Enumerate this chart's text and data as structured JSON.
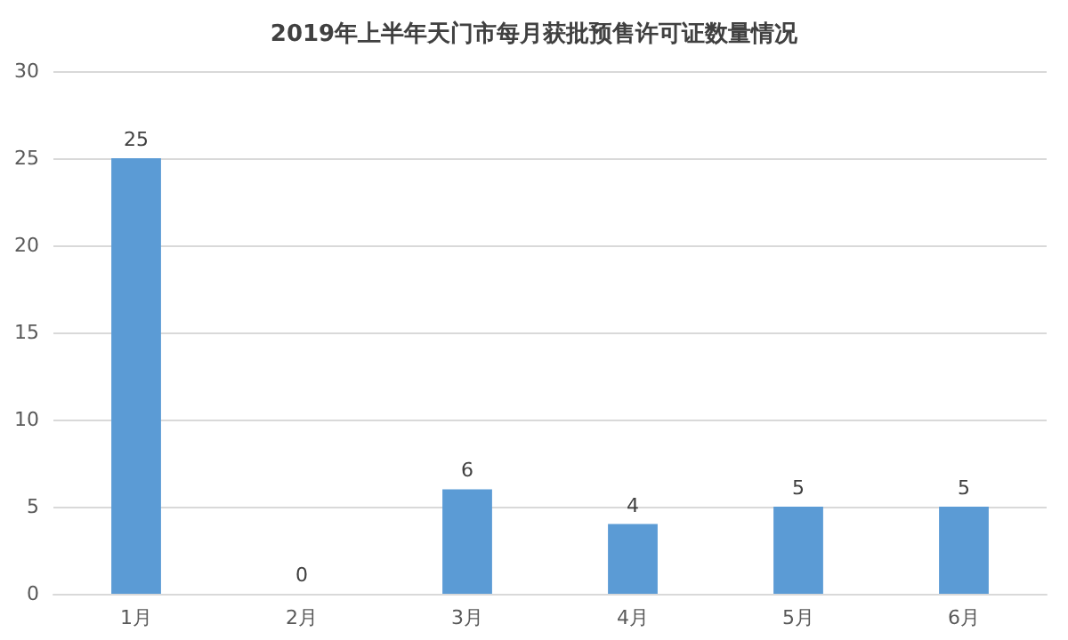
{
  "chart_data": {
    "type": "bar",
    "title": "2019年上半年天门市每月获批预售许可证数量情况",
    "categories": [
      "1月",
      "2月",
      "3月",
      "4月",
      "5月",
      "6月"
    ],
    "values": [
      25,
      0,
      6,
      4,
      5,
      5
    ],
    "color": "#5b9bd5",
    "ylim": [
      0,
      30
    ],
    "yticks": [
      0,
      5,
      10,
      15,
      20,
      25,
      30
    ],
    "grid": "y",
    "data_labels": true
  }
}
